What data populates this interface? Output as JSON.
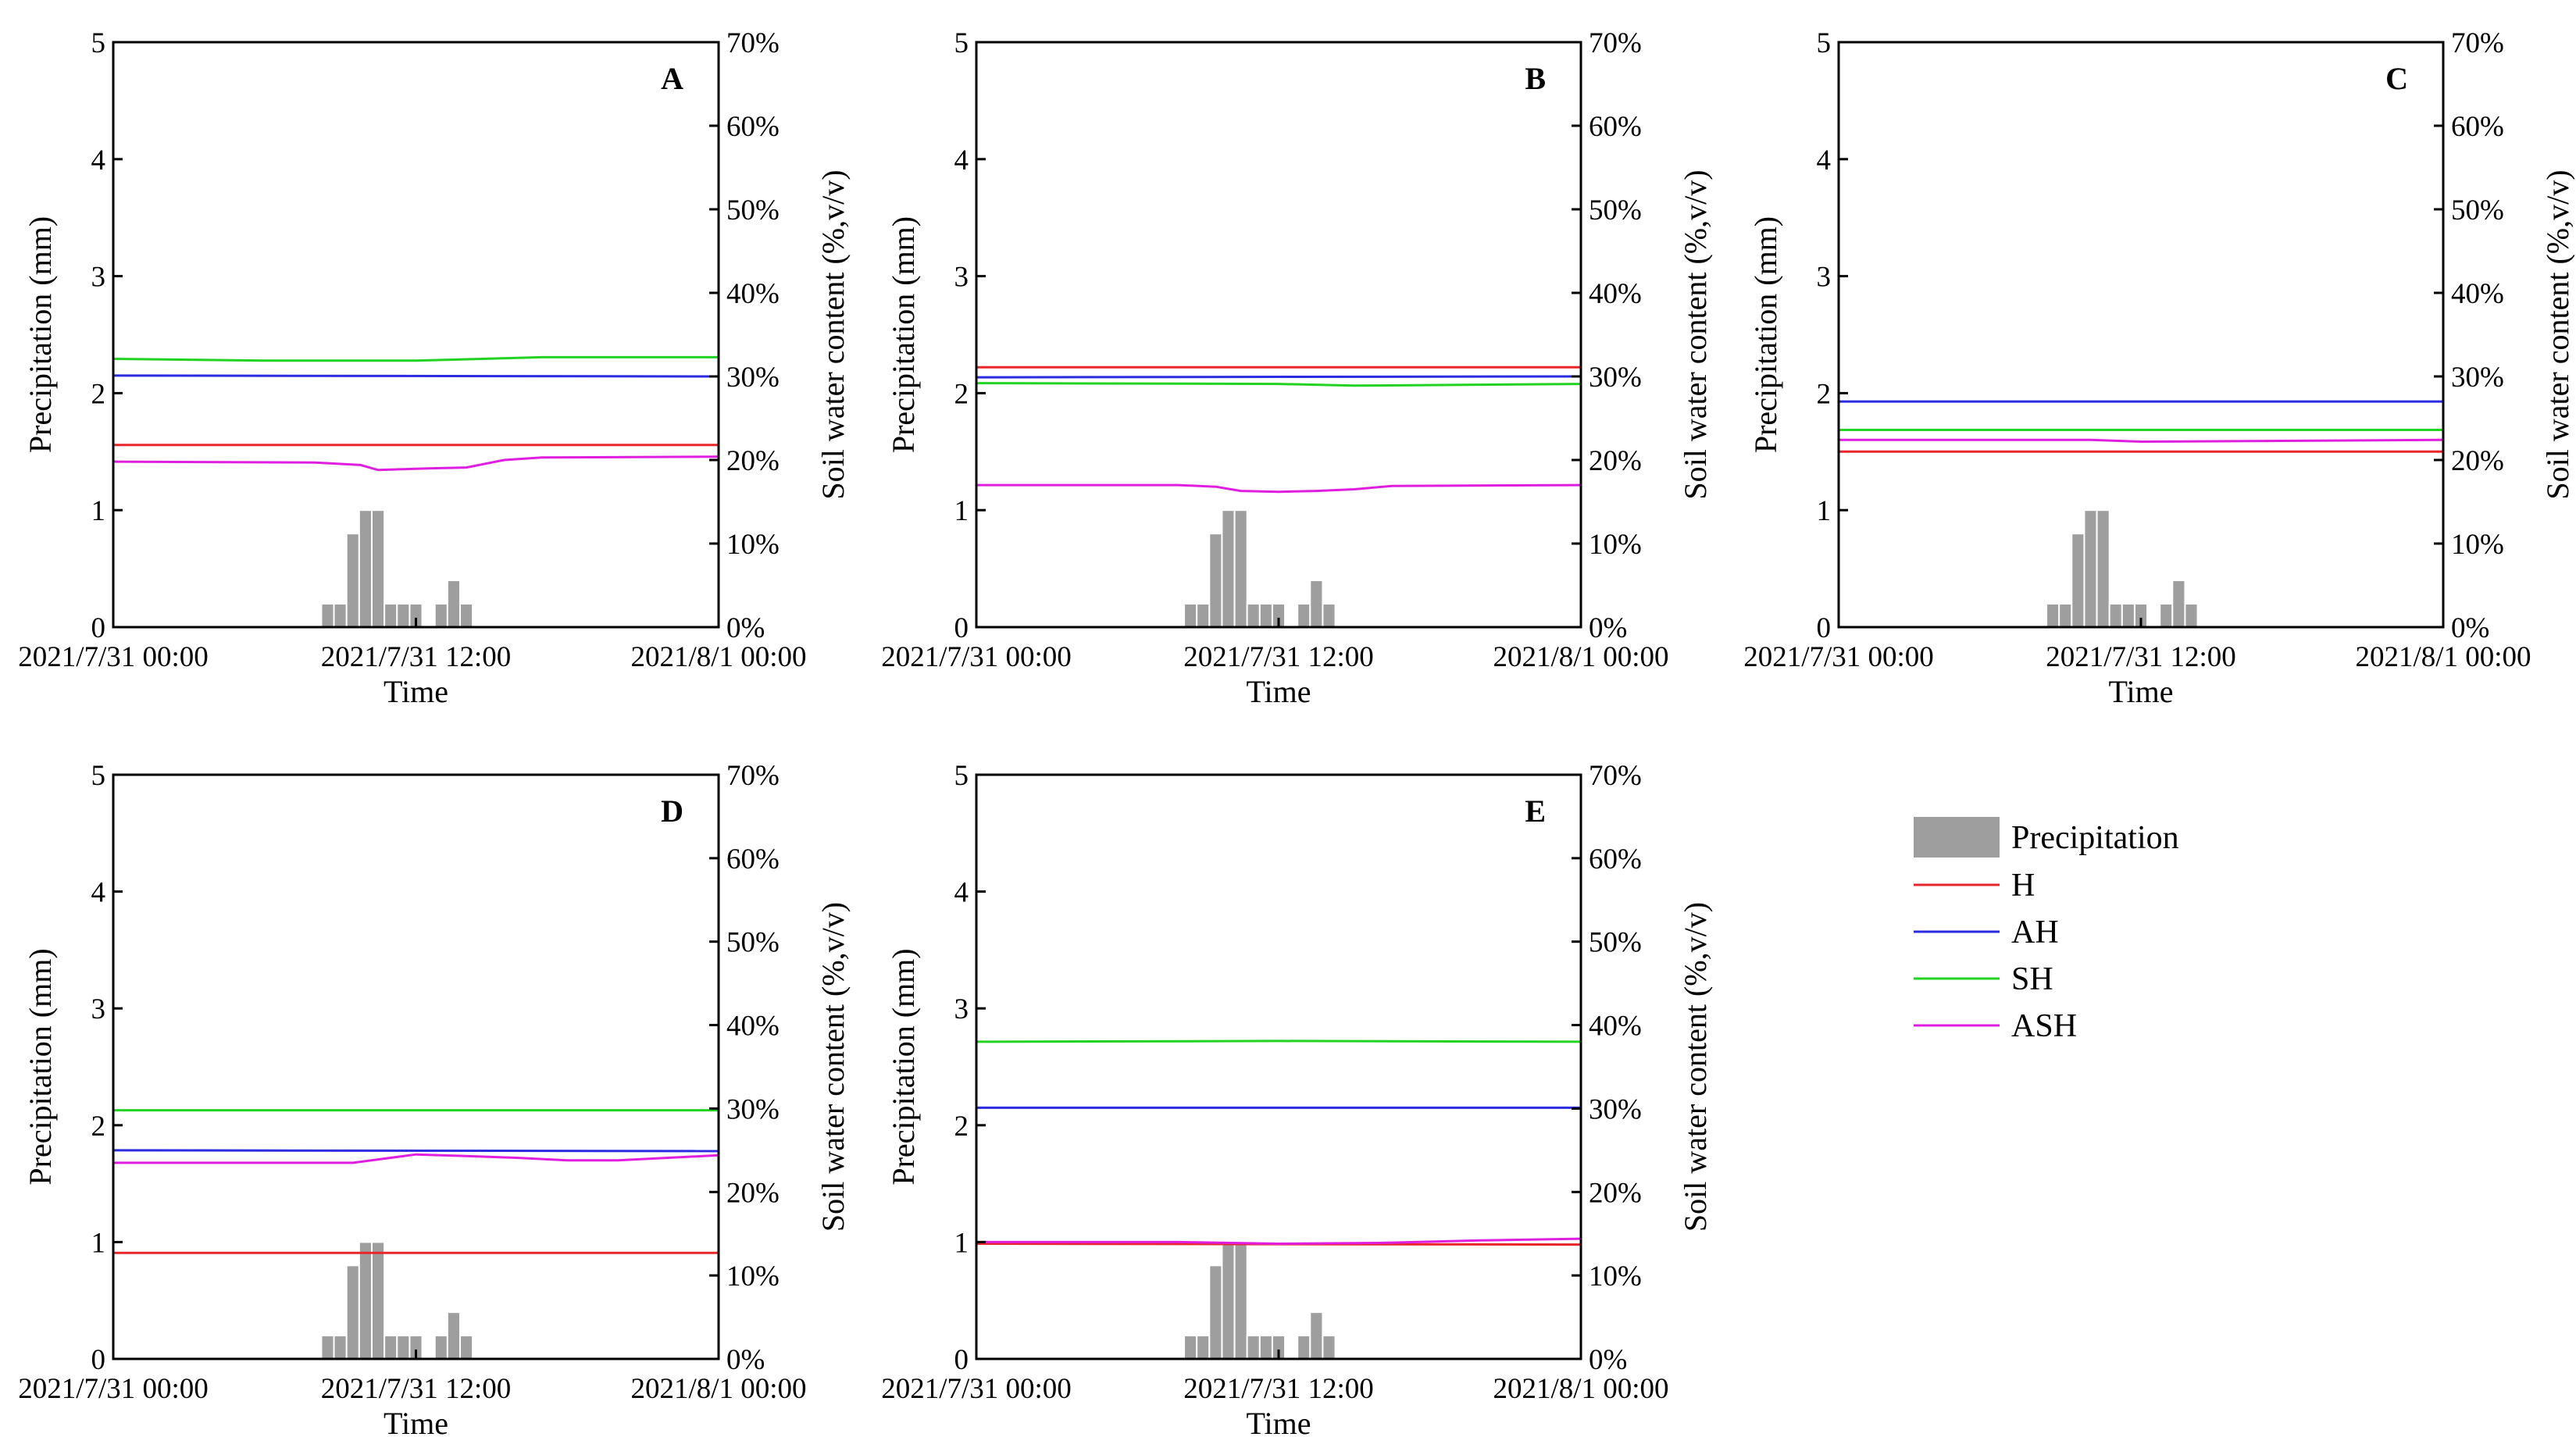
{
  "chart_data": {
    "type": "bar+line",
    "xlabel": "Time",
    "ylabel_left": "Precipitation (mm)",
    "ylabel_right": "Soil water content (%,v/v)",
    "ylim_left": [
      0,
      5
    ],
    "ylim_right_percent": [
      0,
      70
    ],
    "yticks_left": [
      "0",
      "1",
      "2",
      "3",
      "4",
      "5"
    ],
    "yticks_right": [
      "0%",
      "10%",
      "20%",
      "30%",
      "40%",
      "50%",
      "60%",
      "70%"
    ],
    "xticks": [
      {
        "label": "2021/7/31 00:00",
        "hour": 0
      },
      {
        "label": "2021/7/31 12:00",
        "hour": 12
      },
      {
        "label": "2021/8/1 00:00",
        "hour": 24
      }
    ],
    "precipitation": {
      "name": "Precipitation",
      "color": "#9e9e9e",
      "hours": [
        8.5,
        9,
        9.5,
        10,
        10.5,
        11,
        11.5,
        12,
        12.5,
        13,
        13.5,
        14
      ],
      "values": [
        0.2,
        0.2,
        0.8,
        1.0,
        1.0,
        0.2,
        0.2,
        0.2,
        0,
        0.2,
        0.4,
        0.2
      ]
    },
    "series": [
      {
        "name": "H",
        "color": "#e8262b"
      },
      {
        "name": "AH",
        "color": "#2b2bdf"
      },
      {
        "name": "SH",
        "color": "#22d322"
      },
      {
        "name": "ASH",
        "color": "#e01ee0"
      }
    ],
    "panels": [
      {
        "label": "A",
        "soil_water_percent": {
          "H": {
            "x": [
              0,
              24
            ],
            "y": [
              21.8,
              21.8
            ]
          },
          "AH": {
            "x": [
              0,
              24
            ],
            "y": [
              30.1,
              30.0
            ]
          },
          "SH": {
            "x": [
              0,
              6,
              12,
              17,
              24
            ],
            "y": [
              32.1,
              31.9,
              31.9,
              32.3,
              32.3
            ]
          },
          "ASH": {
            "x": [
              0,
              8,
              9.8,
              10.5,
              11.5,
              12.5,
              14,
              15.5,
              17,
              24
            ],
            "y": [
              19.8,
              19.7,
              19.4,
              18.8,
              18.9,
              19.0,
              19.1,
              20.0,
              20.3,
              20.4
            ]
          }
        }
      },
      {
        "label": "B",
        "soil_water_percent": {
          "H": {
            "x": [
              0,
              24
            ],
            "y": [
              31.1,
              31.1
            ]
          },
          "AH": {
            "x": [
              0,
              24
            ],
            "y": [
              29.9,
              30.0
            ]
          },
          "SH": {
            "x": [
              0,
              12,
              15,
              24
            ],
            "y": [
              29.2,
              29.1,
              28.9,
              29.1
            ]
          },
          "ASH": {
            "x": [
              0,
              8,
              9.5,
              10.5,
              12,
              13.5,
              15,
              16.5,
              24
            ],
            "y": [
              17.0,
              17.0,
              16.8,
              16.3,
              16.2,
              16.3,
              16.5,
              16.9,
              17.0
            ]
          }
        }
      },
      {
        "label": "C",
        "soil_water_percent": {
          "H": {
            "x": [
              0,
              24
            ],
            "y": [
              21.0,
              21.0
            ]
          },
          "AH": {
            "x": [
              0,
              24
            ],
            "y": [
              27.0,
              27.0
            ]
          },
          "SH": {
            "x": [
              0,
              24
            ],
            "y": [
              23.6,
              23.6
            ]
          },
          "ASH": {
            "x": [
              0,
              10,
              12,
              24
            ],
            "y": [
              22.4,
              22.4,
              22.2,
              22.4
            ]
          }
        }
      },
      {
        "label": "D",
        "soil_water_percent": {
          "H": {
            "x": [
              0,
              24
            ],
            "y": [
              12.7,
              12.7
            ]
          },
          "AH": {
            "x": [
              0,
              24
            ],
            "y": [
              25.0,
              24.9
            ]
          },
          "SH": {
            "x": [
              0,
              24
            ],
            "y": [
              29.8,
              29.8
            ]
          },
          "ASH": {
            "x": [
              0,
              9.5,
              10.5,
              12,
              13,
              14,
              16,
              18,
              20,
              24
            ],
            "y": [
              23.5,
              23.5,
              23.9,
              24.5,
              24.4,
              24.3,
              24.1,
              23.8,
              23.8,
              24.4
            ]
          }
        }
      },
      {
        "label": "E",
        "soil_water_percent": {
          "H": {
            "x": [
              0,
              24
            ],
            "y": [
              13.8,
              13.7
            ]
          },
          "AH": {
            "x": [
              0,
              24
            ],
            "y": [
              30.1,
              30.1
            ]
          },
          "SH": {
            "x": [
              0,
              12,
              24
            ],
            "y": [
              38.0,
              38.1,
              38.0
            ]
          },
          "ASH": {
            "x": [
              0,
              8,
              12,
              16,
              20,
              24
            ],
            "y": [
              14.0,
              14.0,
              13.8,
              13.9,
              14.2,
              14.4
            ]
          }
        }
      }
    ]
  }
}
